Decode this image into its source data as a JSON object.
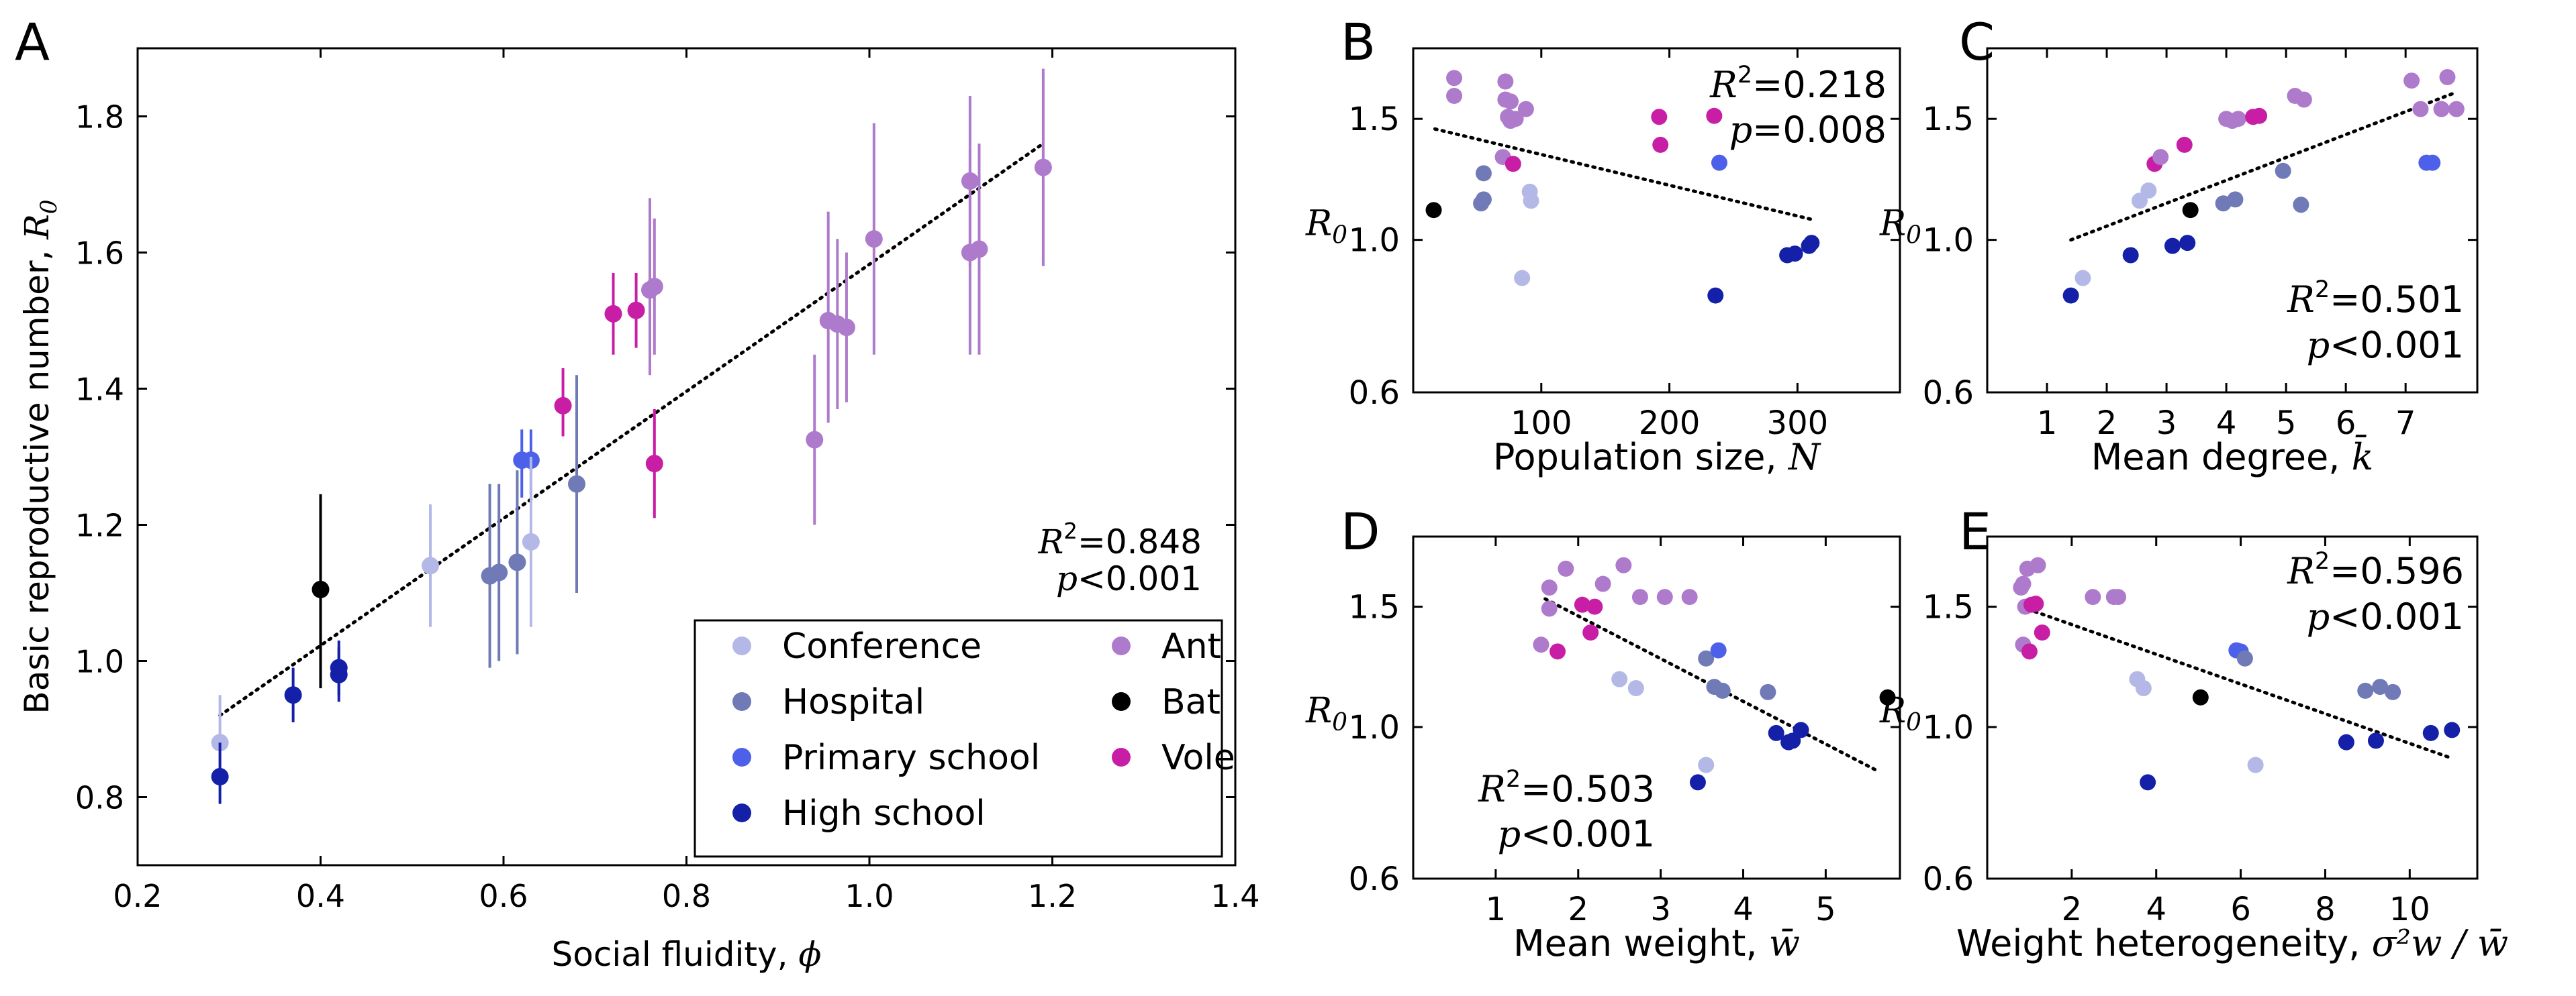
{
  "colors": {
    "Conference": "#b4b8e6",
    "Hospital": "#6f7ab6",
    "Primary school": "#4d60ea",
    "High school": "#1420a8",
    "Ant": "#ae7acc",
    "Bat": "#000000",
    "Vole": "#c81ea6"
  },
  "legend": {
    "entries": [
      "Conference",
      "Hospital",
      "Primary school",
      "High school",
      "Ant",
      "Bat",
      "Vole"
    ],
    "placement": "lower-right"
  },
  "chart_data": [
    {
      "panel": "A",
      "type": "scatter",
      "xlabel_text": "Social fluidity, ",
      "xlabel_symbol": "ϕ",
      "ylabel_text": "Basic reproductive number, ",
      "ylabel_symbol": "R",
      "ylabel_sub": "0",
      "xlim": [
        0.2,
        1.4
      ],
      "ylim": [
        0.7,
        1.9
      ],
      "xticks": [
        "0.2",
        "0.4",
        "0.6",
        "0.8",
        "1.0",
        "1.2",
        "1.4"
      ],
      "yticks": [
        "0.8",
        "1.0",
        "1.2",
        "1.4",
        "1.6",
        "1.8"
      ],
      "r2_label": "R",
      "r2_sup": "2",
      "r2_value": "=0.848",
      "p_label": "p",
      "p_value": "<0.001",
      "fit": {
        "x0": 0.29,
        "y0": 0.92,
        "x1": 1.19,
        "y1": 1.76
      },
      "points": [
        {
          "x": 0.29,
          "y": 0.88,
          "lo": 0.84,
          "hi": 0.95,
          "group": "Conference"
        },
        {
          "x": 0.29,
          "y": 0.83,
          "lo": 0.79,
          "hi": 0.88,
          "group": "High school"
        },
        {
          "x": 0.37,
          "y": 0.95,
          "lo": 0.91,
          "hi": 0.99,
          "group": "High school"
        },
        {
          "x": 0.4,
          "y": 1.105,
          "lo": 0.96,
          "hi": 1.245,
          "group": "Bat"
        },
        {
          "x": 0.42,
          "y": 0.98,
          "lo": 0.94,
          "hi": 1.02,
          "group": "High school"
        },
        {
          "x": 0.42,
          "y": 0.99,
          "lo": 0.95,
          "hi": 1.03,
          "group": "High school"
        },
        {
          "x": 0.52,
          "y": 1.14,
          "lo": 1.05,
          "hi": 1.23,
          "group": "Conference"
        },
        {
          "x": 0.585,
          "y": 1.125,
          "lo": 0.99,
          "hi": 1.26,
          "group": "Hospital"
        },
        {
          "x": 0.595,
          "y": 1.13,
          "lo": 1.0,
          "hi": 1.26,
          "group": "Hospital"
        },
        {
          "x": 0.615,
          "y": 1.145,
          "lo": 1.01,
          "hi": 1.28,
          "group": "Hospital"
        },
        {
          "x": 0.62,
          "y": 1.295,
          "lo": 1.24,
          "hi": 1.34,
          "group": "Primary school"
        },
        {
          "x": 0.63,
          "y": 1.295,
          "lo": 1.245,
          "hi": 1.34,
          "group": "Primary school"
        },
        {
          "x": 0.63,
          "y": 1.175,
          "lo": 1.05,
          "hi": 1.3,
          "group": "Conference"
        },
        {
          "x": 0.665,
          "y": 1.375,
          "lo": 1.33,
          "hi": 1.43,
          "group": "Vole"
        },
        {
          "x": 0.68,
          "y": 1.26,
          "lo": 1.1,
          "hi": 1.42,
          "group": "Hospital"
        },
        {
          "x": 0.72,
          "y": 1.51,
          "lo": 1.45,
          "hi": 1.57,
          "group": "Vole"
        },
        {
          "x": 0.745,
          "y": 1.515,
          "lo": 1.46,
          "hi": 1.57,
          "group": "Vole"
        },
        {
          "x": 0.76,
          "y": 1.545,
          "lo": 1.42,
          "hi": 1.68,
          "group": "Ant"
        },
        {
          "x": 0.765,
          "y": 1.55,
          "lo": 1.45,
          "hi": 1.65,
          "group": "Ant"
        },
        {
          "x": 0.765,
          "y": 1.29,
          "lo": 1.21,
          "hi": 1.37,
          "group": "Vole"
        },
        {
          "x": 0.94,
          "y": 1.325,
          "lo": 1.2,
          "hi": 1.45,
          "group": "Ant"
        },
        {
          "x": 0.955,
          "y": 1.5,
          "lo": 1.35,
          "hi": 1.66,
          "group": "Ant"
        },
        {
          "x": 0.965,
          "y": 1.495,
          "lo": 1.37,
          "hi": 1.62,
          "group": "Ant"
        },
        {
          "x": 0.975,
          "y": 1.49,
          "lo": 1.38,
          "hi": 1.6,
          "group": "Ant"
        },
        {
          "x": 1.005,
          "y": 1.62,
          "lo": 1.45,
          "hi": 1.79,
          "group": "Ant"
        },
        {
          "x": 1.11,
          "y": 1.705,
          "lo": 1.58,
          "hi": 1.83,
          "group": "Ant"
        },
        {
          "x": 1.11,
          "y": 1.6,
          "lo": 1.45,
          "hi": 1.75,
          "group": "Ant"
        },
        {
          "x": 1.12,
          "y": 1.605,
          "lo": 1.45,
          "hi": 1.76,
          "group": "Ant"
        },
        {
          "x": 1.19,
          "y": 1.725,
          "lo": 1.58,
          "hi": 1.87,
          "group": "Ant"
        }
      ]
    },
    {
      "panel": "B",
      "type": "scatter",
      "xlabel_text": "Population size, ",
      "xlabel_symbol": "N",
      "ylabel_symbol": "R",
      "ylabel_sub": "0",
      "yscale": "log",
      "xlim": [
        0,
        380
      ],
      "ylim": [
        0.6,
        1.9
      ],
      "xticks": [
        "100",
        "200",
        "300"
      ],
      "yticks": [
        "0.6",
        "1.0",
        "1.5"
      ],
      "r2_label": "R",
      "r2_sup": "2",
      "r2_value": "=0.218",
      "p_label": "p",
      "p_value": "=0.008",
      "fit": {
        "x0": 17,
        "y0": 1.45,
        "x1": 312,
        "y1": 1.07
      },
      "points": [
        {
          "x": 16,
          "y": 1.105,
          "group": "Bat"
        },
        {
          "x": 32,
          "y": 1.72,
          "group": "Ant"
        },
        {
          "x": 32,
          "y": 1.62,
          "group": "Ant"
        },
        {
          "x": 55,
          "y": 1.25,
          "group": "Hospital"
        },
        {
          "x": 53,
          "y": 1.13,
          "group": "Hospital"
        },
        {
          "x": 55,
          "y": 1.145,
          "group": "Hospital"
        },
        {
          "x": 70,
          "y": 1.32,
          "group": "Ant"
        },
        {
          "x": 72,
          "y": 1.7,
          "group": "Ant"
        },
        {
          "x": 72,
          "y": 1.6,
          "group": "Ant"
        },
        {
          "x": 76,
          "y": 1.59,
          "group": "Ant"
        },
        {
          "x": 74,
          "y": 1.51,
          "group": "Ant"
        },
        {
          "x": 76,
          "y": 1.49,
          "group": "Ant"
        },
        {
          "x": 80,
          "y": 1.5,
          "group": "Ant"
        },
        {
          "x": 88,
          "y": 1.55,
          "group": "Ant"
        },
        {
          "x": 78,
          "y": 1.29,
          "group": "Vole"
        },
        {
          "x": 85,
          "y": 0.88,
          "group": "Conference"
        },
        {
          "x": 91,
          "y": 1.175,
          "group": "Conference"
        },
        {
          "x": 92,
          "y": 1.14,
          "group": "Conference"
        },
        {
          "x": 192,
          "y": 1.51,
          "group": "Vole"
        },
        {
          "x": 193,
          "y": 1.375,
          "group": "Vole"
        },
        {
          "x": 235,
          "y": 1.515,
          "group": "Vole"
        },
        {
          "x": 239,
          "y": 1.295,
          "group": "Primary school"
        },
        {
          "x": 236,
          "y": 0.83,
          "group": "High school"
        },
        {
          "x": 292,
          "y": 0.95,
          "group": "High school"
        },
        {
          "x": 298,
          "y": 0.955,
          "group": "High school"
        },
        {
          "x": 309,
          "y": 0.98,
          "group": "High school"
        },
        {
          "x": 311,
          "y": 0.99,
          "group": "High school"
        }
      ]
    },
    {
      "panel": "C",
      "type": "scatter",
      "xlabel_text": "Mean degree, ",
      "xlabel_symbol": "k̄",
      "ylabel_symbol": "R",
      "ylabel_sub": "0",
      "yscale": "log",
      "xlim": [
        0,
        8.2
      ],
      "ylim": [
        0.6,
        1.9
      ],
      "xticks": [
        "1",
        "2",
        "3",
        "4",
        "5",
        "6",
        "7"
      ],
      "yticks": [
        "0.6",
        "1.0",
        "1.5"
      ],
      "r2_label": "R",
      "r2_sup": "2",
      "r2_value": "=0.501",
      "p_label": "p",
      "p_value": "<0.001",
      "fit": {
        "x0": 1.4,
        "y0": 1.0,
        "x1": 7.85,
        "y1": 1.64
      },
      "points": [
        {
          "x": 1.4,
          "y": 0.83,
          "group": "High school"
        },
        {
          "x": 1.6,
          "y": 0.88,
          "group": "Conference"
        },
        {
          "x": 2.4,
          "y": 0.95,
          "group": "High school"
        },
        {
          "x": 2.55,
          "y": 1.14,
          "group": "Conference"
        },
        {
          "x": 2.7,
          "y": 1.18,
          "group": "Conference"
        },
        {
          "x": 2.8,
          "y": 1.29,
          "group": "Vole"
        },
        {
          "x": 2.9,
          "y": 1.32,
          "group": "Ant"
        },
        {
          "x": 3.1,
          "y": 0.98,
          "group": "High school"
        },
        {
          "x": 3.35,
          "y": 0.99,
          "group": "High school"
        },
        {
          "x": 3.3,
          "y": 1.375,
          "group": "Vole"
        },
        {
          "x": 3.4,
          "y": 1.105,
          "group": "Bat"
        },
        {
          "x": 3.95,
          "y": 1.13,
          "group": "Hospital"
        },
        {
          "x": 4.15,
          "y": 1.145,
          "group": "Hospital"
        },
        {
          "x": 4.0,
          "y": 1.5,
          "group": "Ant"
        },
        {
          "x": 4.1,
          "y": 1.49,
          "group": "Ant"
        },
        {
          "x": 4.2,
          "y": 1.5,
          "group": "Ant"
        },
        {
          "x": 4.45,
          "y": 1.51,
          "group": "Vole"
        },
        {
          "x": 4.55,
          "y": 1.515,
          "group": "Vole"
        },
        {
          "x": 4.95,
          "y": 1.26,
          "group": "Hospital"
        },
        {
          "x": 5.15,
          "y": 1.62,
          "group": "Ant"
        },
        {
          "x": 5.3,
          "y": 1.6,
          "group": "Ant"
        },
        {
          "x": 5.25,
          "y": 1.125,
          "group": "Hospital"
        },
        {
          "x": 7.1,
          "y": 1.705,
          "group": "Ant"
        },
        {
          "x": 7.25,
          "y": 1.55,
          "group": "Ant"
        },
        {
          "x": 7.35,
          "y": 1.295,
          "group": "Primary school"
        },
        {
          "x": 7.45,
          "y": 1.295,
          "group": "Primary school"
        },
        {
          "x": 7.6,
          "y": 1.55,
          "group": "Ant"
        },
        {
          "x": 7.7,
          "y": 1.725,
          "group": "Ant"
        },
        {
          "x": 7.85,
          "y": 1.55,
          "group": "Ant"
        }
      ]
    },
    {
      "panel": "D",
      "type": "scatter",
      "xlabel_text": "Mean weight, ",
      "xlabel_symbol": "w̄",
      "ylabel_symbol": "R",
      "ylabel_sub": "0",
      "yscale": "log",
      "xlim": [
        0,
        5.9
      ],
      "ylim": [
        0.6,
        1.9
      ],
      "xticks": [
        "1",
        "2",
        "3",
        "4",
        "5"
      ],
      "yticks": [
        "0.6",
        "1.0",
        "1.5"
      ],
      "r2_label": "R",
      "r2_sup": "2",
      "r2_value": "=0.503",
      "p_label": "p",
      "p_value": "<0.001",
      "fit": {
        "x0": 1.6,
        "y0": 1.54,
        "x1": 5.65,
        "y1": 0.86
      },
      "points": [
        {
          "x": 1.55,
          "y": 1.32,
          "group": "Ant"
        },
        {
          "x": 1.65,
          "y": 1.6,
          "group": "Ant"
        },
        {
          "x": 1.65,
          "y": 1.49,
          "group": "Ant"
        },
        {
          "x": 1.75,
          "y": 1.29,
          "group": "Vole"
        },
        {
          "x": 1.85,
          "y": 1.705,
          "group": "Ant"
        },
        {
          "x": 2.05,
          "y": 1.51,
          "group": "Vole"
        },
        {
          "x": 2.15,
          "y": 1.375,
          "group": "Vole"
        },
        {
          "x": 2.2,
          "y": 1.5,
          "group": "Vole"
        },
        {
          "x": 2.3,
          "y": 1.62,
          "group": "Ant"
        },
        {
          "x": 2.55,
          "y": 1.725,
          "group": "Ant"
        },
        {
          "x": 2.5,
          "y": 1.175,
          "group": "Conference"
        },
        {
          "x": 2.7,
          "y": 1.14,
          "group": "Conference"
        },
        {
          "x": 2.75,
          "y": 1.55,
          "group": "Ant"
        },
        {
          "x": 3.05,
          "y": 1.55,
          "group": "Ant"
        },
        {
          "x": 3.35,
          "y": 1.55,
          "group": "Ant"
        },
        {
          "x": 3.55,
          "y": 1.26,
          "group": "Hospital"
        },
        {
          "x": 3.45,
          "y": 0.83,
          "group": "High school"
        },
        {
          "x": 3.55,
          "y": 0.88,
          "group": "Conference"
        },
        {
          "x": 3.65,
          "y": 1.145,
          "group": "Hospital"
        },
        {
          "x": 3.7,
          "y": 1.295,
          "group": "Primary school"
        },
        {
          "x": 3.75,
          "y": 1.13,
          "group": "Hospital"
        },
        {
          "x": 4.3,
          "y": 1.125,
          "group": "Hospital"
        },
        {
          "x": 4.4,
          "y": 0.98,
          "group": "High school"
        },
        {
          "x": 4.55,
          "y": 0.95,
          "group": "High school"
        },
        {
          "x": 4.6,
          "y": 0.955,
          "group": "High school"
        },
        {
          "x": 4.7,
          "y": 0.99,
          "group": "High school"
        },
        {
          "x": 5.75,
          "y": 1.105,
          "group": "Bat"
        }
      ]
    },
    {
      "panel": "E",
      "type": "scatter",
      "xlabel_text": "Weight heterogeneity, ",
      "xlabel_symbol": "σ²w / w̄",
      "ylabel_symbol": "R",
      "ylabel_sub": "0",
      "yscale": "log",
      "xlim": [
        0,
        11.6
      ],
      "ylim": [
        0.6,
        1.9
      ],
      "xticks": [
        "2",
        "4",
        "6",
        "8",
        "10"
      ],
      "yticks": [
        "0.6",
        "1.0",
        "1.5"
      ],
      "r2_label": "R",
      "r2_sup": "2",
      "r2_value": "=0.596",
      "p_label": "p",
      "p_value": "<0.001",
      "fit": {
        "x0": 0.8,
        "y0": 1.5,
        "x1": 11.0,
        "y1": 0.9
      },
      "points": [
        {
          "x": 0.8,
          "y": 1.6,
          "group": "Ant"
        },
        {
          "x": 0.85,
          "y": 1.62,
          "group": "Ant"
        },
        {
          "x": 0.85,
          "y": 1.32,
          "group": "Ant"
        },
        {
          "x": 0.9,
          "y": 1.5,
          "group": "Ant"
        },
        {
          "x": 0.95,
          "y": 1.705,
          "group": "Ant"
        },
        {
          "x": 1.0,
          "y": 1.29,
          "group": "Vole"
        },
        {
          "x": 1.05,
          "y": 1.51,
          "group": "Vole"
        },
        {
          "x": 1.15,
          "y": 1.515,
          "group": "Vole"
        },
        {
          "x": 1.2,
          "y": 1.725,
          "group": "Ant"
        },
        {
          "x": 1.3,
          "y": 1.375,
          "group": "Vole"
        },
        {
          "x": 2.5,
          "y": 1.55,
          "group": "Ant"
        },
        {
          "x": 3.0,
          "y": 1.55,
          "group": "Ant"
        },
        {
          "x": 3.1,
          "y": 1.55,
          "group": "Ant"
        },
        {
          "x": 3.55,
          "y": 1.175,
          "group": "Conference"
        },
        {
          "x": 3.7,
          "y": 1.14,
          "group": "Conference"
        },
        {
          "x": 3.8,
          "y": 0.83,
          "group": "High school"
        },
        {
          "x": 5.05,
          "y": 1.105,
          "group": "Bat"
        },
        {
          "x": 5.9,
          "y": 1.295,
          "group": "Primary school"
        },
        {
          "x": 6.0,
          "y": 1.29,
          "group": "Primary school"
        },
        {
          "x": 6.1,
          "y": 1.26,
          "group": "Hospital"
        },
        {
          "x": 6.35,
          "y": 0.88,
          "group": "Conference"
        },
        {
          "x": 8.5,
          "y": 0.95,
          "group": "High school"
        },
        {
          "x": 8.95,
          "y": 1.13,
          "group": "Hospital"
        },
        {
          "x": 9.2,
          "y": 0.955,
          "group": "High school"
        },
        {
          "x": 9.3,
          "y": 1.145,
          "group": "Hospital"
        },
        {
          "x": 9.6,
          "y": 1.125,
          "group": "Hospital"
        },
        {
          "x": 10.5,
          "y": 0.98,
          "group": "High school"
        },
        {
          "x": 11.0,
          "y": 0.99,
          "group": "High school"
        }
      ]
    }
  ]
}
